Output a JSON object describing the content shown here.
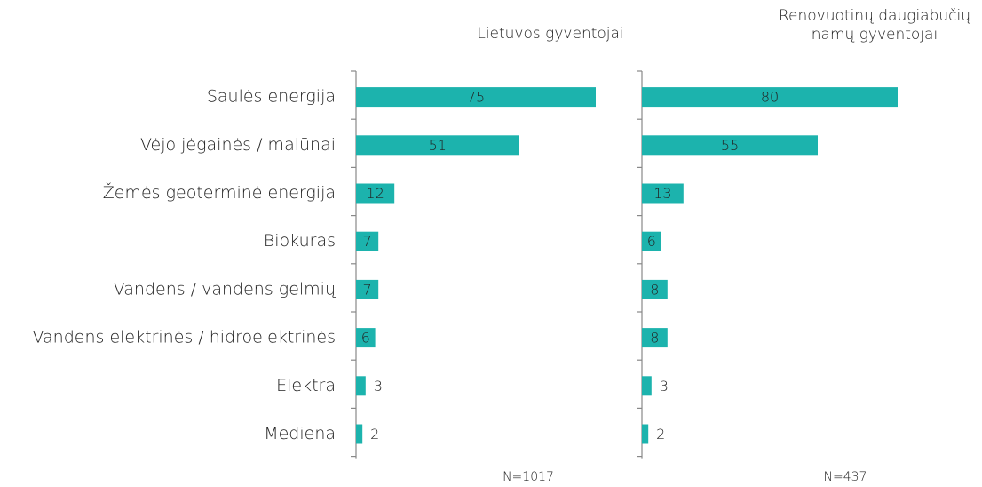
{
  "chart_data": {
    "type": "bar",
    "categories": [
      "Saulės energija",
      "Vėjo jėgainės / malūnai",
      "Žemės geoterminė energija",
      "Biokuras",
      "Vandens / vandens gelmių",
      "Vandens elektrinės / hidroelektrinės",
      "Elektra",
      "Mediena"
    ],
    "series": [
      {
        "name": "Lietuvos gyventojai",
        "color": "#1cb3ad",
        "values": [
          75,
          51,
          12,
          7,
          7,
          6,
          3,
          2
        ],
        "sample": "N=1017"
      },
      {
        "name": "Renovuotinų daugiabučių namų gyventojai",
        "color": "#1cb3ad",
        "values": [
          80,
          55,
          13,
          6,
          8,
          8,
          3,
          2
        ],
        "sample": "N=437"
      }
    ]
  }
}
